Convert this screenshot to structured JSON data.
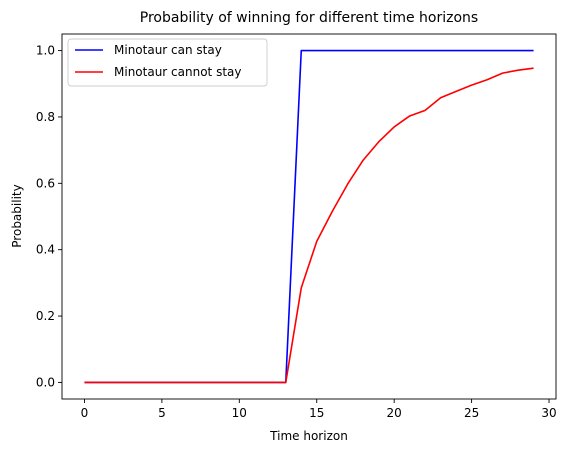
{
  "chart_data": {
    "type": "line",
    "title": "Probability of winning for different time horizons",
    "xlabel": "Time horizon",
    "ylabel": "Probability",
    "xlim": [
      -1.45,
      30.45
    ],
    "ylim": [
      -0.05,
      1.05
    ],
    "xticks": [
      0,
      5,
      10,
      15,
      20,
      25,
      30
    ],
    "yticks": [
      0.0,
      0.2,
      0.4,
      0.6,
      0.8,
      1.0
    ],
    "xtick_labels": [
      "0",
      "5",
      "10",
      "15",
      "20",
      "25",
      "30"
    ],
    "ytick_labels": [
      "0.0",
      "0.2",
      "0.4",
      "0.6",
      "0.8",
      "1.0"
    ],
    "grid": false,
    "legend_position": "top-left",
    "x": [
      0,
      1,
      2,
      3,
      4,
      5,
      6,
      7,
      8,
      9,
      10,
      11,
      12,
      13,
      14,
      15,
      16,
      17,
      18,
      19,
      20,
      21,
      22,
      23,
      24,
      25,
      26,
      27,
      28,
      29
    ],
    "series": [
      {
        "name": "Minotaur can stay",
        "color": "#0000ff",
        "values": [
          0,
          0,
          0,
          0,
          0,
          0,
          0,
          0,
          0,
          0,
          0,
          0,
          0,
          0,
          1,
          1,
          1,
          1,
          1,
          1,
          1,
          1,
          1,
          1,
          1,
          1,
          1,
          1,
          1,
          1
        ]
      },
      {
        "name": "Minotaur cannot stay",
        "color": "#ff0000",
        "values": [
          0,
          0,
          0,
          0,
          0,
          0,
          0,
          0,
          0,
          0,
          0,
          0,
          0,
          0,
          0.285,
          0.425,
          0.515,
          0.598,
          0.67,
          0.725,
          0.77,
          0.803,
          0.82,
          0.858,
          0.877,
          0.896,
          0.912,
          0.932,
          0.941,
          0.947
        ]
      }
    ]
  }
}
